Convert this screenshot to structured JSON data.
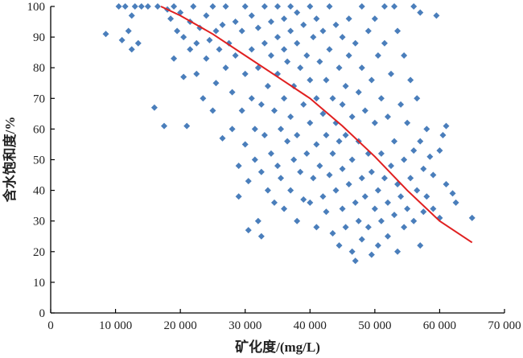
{
  "chart_data": {
    "type": "scatter",
    "title": "",
    "xlabel": "矿化度/(mg/L)",
    "ylabel": "含水饱和度/%",
    "xlim": [
      0,
      70000
    ],
    "ylim": [
      0,
      100
    ],
    "x_ticks": [
      0,
      10000,
      20000,
      30000,
      40000,
      50000,
      60000,
      70000
    ],
    "x_tick_labels": [
      "0",
      "10 000",
      "20 000",
      "30 000",
      "40 000",
      "50 000",
      "60 000",
      "70 000"
    ],
    "y_ticks": [
      0,
      10,
      20,
      30,
      40,
      50,
      60,
      70,
      80,
      90,
      100
    ],
    "y_tick_labels": [
      "0",
      "10",
      "20",
      "30",
      "40",
      "50",
      "60",
      "70",
      "80",
      "90",
      "100"
    ],
    "grid": false,
    "legend": "none",
    "colors": {
      "points": "#4a7ebb",
      "trend": "#e02020",
      "axis": "#000000"
    },
    "series": [
      {
        "kind": "scatter",
        "marker": "diamond",
        "points": [
          [
            8500,
            91
          ],
          [
            10500,
            100
          ],
          [
            11000,
            89
          ],
          [
            11500,
            100
          ],
          [
            12000,
            92
          ],
          [
            12500,
            86
          ],
          [
            12500,
            97
          ],
          [
            13000,
            100
          ],
          [
            13500,
            88
          ],
          [
            14000,
            100
          ],
          [
            15000,
            100
          ],
          [
            16000,
            67
          ],
          [
            16500,
            100
          ],
          [
            17500,
            61
          ],
          [
            18000,
            99
          ],
          [
            18500,
            96
          ],
          [
            19000,
            100
          ],
          [
            19500,
            92
          ],
          [
            19000,
            83
          ],
          [
            20000,
            98
          ],
          [
            20500,
            90
          ],
          [
            20500,
            77
          ],
          [
            21000,
            61
          ],
          [
            21500,
            95
          ],
          [
            21500,
            86
          ],
          [
            22000,
            100
          ],
          [
            22500,
            78
          ],
          [
            22500,
            88
          ],
          [
            23000,
            93
          ],
          [
            23500,
            70
          ],
          [
            24000,
            97
          ],
          [
            24000,
            83
          ],
          [
            24500,
            89
          ],
          [
            25000,
            100
          ],
          [
            25000,
            66
          ],
          [
            25500,
            92
          ],
          [
            25500,
            75
          ],
          [
            26000,
            86
          ],
          [
            26500,
            94
          ],
          [
            26500,
            57
          ],
          [
            27000,
            100
          ],
          [
            27000,
            80
          ],
          [
            27500,
            88
          ],
          [
            28000,
            72
          ],
          [
            28000,
            60
          ],
          [
            28500,
            95
          ],
          [
            28500,
            84
          ],
          [
            29000,
            48
          ],
          [
            29000,
            38
          ],
          [
            29500,
            92
          ],
          [
            29500,
            66
          ],
          [
            30000,
            100
          ],
          [
            30000,
            78
          ],
          [
            30000,
            55
          ],
          [
            30500,
            43
          ],
          [
            30500,
            27
          ],
          [
            31000,
            97
          ],
          [
            31000,
            86
          ],
          [
            31000,
            70
          ],
          [
            31500,
            60
          ],
          [
            31500,
            50
          ],
          [
            32000,
            93
          ],
          [
            32000,
            80
          ],
          [
            32000,
            30
          ],
          [
            32500,
            68
          ],
          [
            32500,
            46
          ],
          [
            32500,
            25
          ],
          [
            33000,
            100
          ],
          [
            33000,
            88
          ],
          [
            33000,
            58
          ],
          [
            33500,
            74
          ],
          [
            33500,
            40
          ],
          [
            34000,
            95
          ],
          [
            34000,
            84
          ],
          [
            34000,
            52
          ],
          [
            34500,
            66
          ],
          [
            34500,
            36
          ],
          [
            35000,
            100
          ],
          [
            35000,
            90
          ],
          [
            35000,
            78
          ],
          [
            35000,
            48
          ],
          [
            35500,
            60
          ],
          [
            35500,
            44
          ],
          [
            36000,
            96
          ],
          [
            36000,
            86
          ],
          [
            36000,
            70
          ],
          [
            36000,
            34
          ],
          [
            36500,
            56
          ],
          [
            36500,
            82
          ],
          [
            37000,
            100
          ],
          [
            37000,
            92
          ],
          [
            37000,
            64
          ],
          [
            37000,
            40
          ],
          [
            37500,
            74
          ],
          [
            37500,
            50
          ],
          [
            38000,
            98
          ],
          [
            38000,
            88
          ],
          [
            38000,
            58
          ],
          [
            38000,
            30
          ],
          [
            38500,
            80
          ],
          [
            38500,
            46
          ],
          [
            39000,
            94
          ],
          [
            39000,
            68
          ],
          [
            39000,
            37
          ],
          [
            39500,
            84
          ],
          [
            39500,
            52
          ],
          [
            40000,
            100
          ],
          [
            40000,
            76
          ],
          [
            40000,
            62
          ],
          [
            40000,
            36
          ],
          [
            40500,
            90
          ],
          [
            40500,
            44
          ],
          [
            41000,
            96
          ],
          [
            41000,
            70
          ],
          [
            41000,
            55
          ],
          [
            41000,
            28
          ],
          [
            41500,
            82
          ],
          [
            41500,
            48
          ],
          [
            42000,
            92
          ],
          [
            42000,
            65
          ],
          [
            42000,
            38
          ],
          [
            42500,
            76
          ],
          [
            42500,
            58
          ],
          [
            42500,
            33
          ],
          [
            43000,
            100
          ],
          [
            43000,
            86
          ],
          [
            43000,
            45
          ],
          [
            43500,
            70
          ],
          [
            43500,
            52
          ],
          [
            43500,
            26
          ],
          [
            44000,
            94
          ],
          [
            44000,
            62
          ],
          [
            44000,
            40
          ],
          [
            44500,
            80
          ],
          [
            44500,
            56
          ],
          [
            44500,
            22
          ],
          [
            45000,
            90
          ],
          [
            45000,
            68
          ],
          [
            45000,
            47
          ],
          [
            45000,
            34
          ],
          [
            45500,
            74
          ],
          [
            45500,
            58
          ],
          [
            45500,
            28
          ],
          [
            46000,
            96
          ],
          [
            46000,
            84
          ],
          [
            46000,
            42
          ],
          [
            46500,
            64
          ],
          [
            46500,
            50
          ],
          [
            46500,
            20
          ],
          [
            47000,
            88
          ],
          [
            47000,
            36
          ],
          [
            47000,
            17
          ],
          [
            47500,
            72
          ],
          [
            47500,
            56
          ],
          [
            47500,
            30
          ],
          [
            48000,
            100
          ],
          [
            48000,
            80
          ],
          [
            48000,
            44
          ],
          [
            48000,
            24
          ],
          [
            48500,
            66
          ],
          [
            48500,
            38
          ],
          [
            49000,
            92
          ],
          [
            49000,
            52
          ],
          [
            49000,
            28
          ],
          [
            49500,
            76
          ],
          [
            49500,
            46
          ],
          [
            49500,
            19
          ],
          [
            50000,
            96
          ],
          [
            50000,
            62
          ],
          [
            50000,
            34
          ],
          [
            50500,
            84
          ],
          [
            50500,
            40
          ],
          [
            50500,
            22
          ],
          [
            51000,
            70
          ],
          [
            51000,
            52
          ],
          [
            51000,
            30
          ],
          [
            51500,
            100
          ],
          [
            51500,
            88
          ],
          [
            51500,
            44
          ],
          [
            52000,
            64
          ],
          [
            52000,
            36
          ],
          [
            52000,
            25
          ],
          [
            52500,
            78
          ],
          [
            52500,
            48
          ],
          [
            53000,
            100
          ],
          [
            53000,
            56
          ],
          [
            53000,
            32
          ],
          [
            53500,
            92
          ],
          [
            53500,
            42
          ],
          [
            53500,
            20
          ],
          [
            54000,
            68
          ],
          [
            54000,
            38
          ],
          [
            54500,
            84
          ],
          [
            54500,
            50
          ],
          [
            54500,
            28
          ],
          [
            55000,
            62
          ],
          [
            55000,
            34
          ],
          [
            55500,
            76
          ],
          [
            55500,
            44
          ],
          [
            56000,
            100
          ],
          [
            56000,
            53
          ],
          [
            56000,
            30
          ],
          [
            56500,
            70
          ],
          [
            56500,
            40
          ],
          [
            57000,
            98
          ],
          [
            57000,
            56
          ],
          [
            57000,
            22
          ],
          [
            57500,
            47
          ],
          [
            57500,
            33
          ],
          [
            58000,
            60
          ],
          [
            58000,
            38
          ],
          [
            58500,
            51
          ],
          [
            59000,
            45
          ],
          [
            59000,
            34
          ],
          [
            59500,
            97
          ],
          [
            60000,
            53
          ],
          [
            60000,
            31
          ],
          [
            60500,
            58
          ],
          [
            61000,
            61
          ],
          [
            61000,
            42
          ],
          [
            62000,
            39
          ],
          [
            62500,
            36
          ],
          [
            65000,
            31
          ]
        ]
      },
      {
        "kind": "trend",
        "points": [
          [
            17000,
            100
          ],
          [
            20000,
            97
          ],
          [
            25000,
            91
          ],
          [
            30000,
            84
          ],
          [
            35000,
            77
          ],
          [
            40000,
            70
          ],
          [
            45000,
            61
          ],
          [
            50000,
            51
          ],
          [
            55000,
            40
          ],
          [
            60000,
            30
          ],
          [
            65000,
            23
          ]
        ]
      }
    ]
  }
}
